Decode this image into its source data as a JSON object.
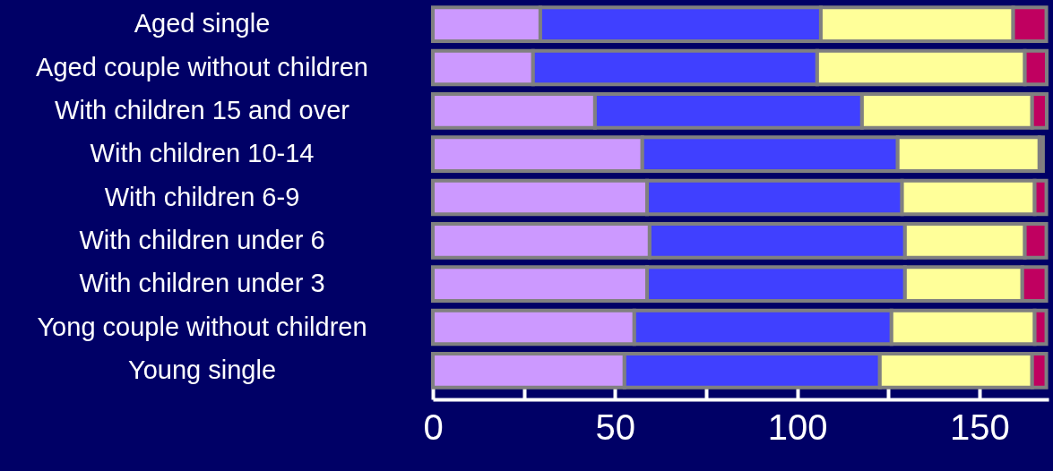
{
  "chart_data": {
    "type": "bar",
    "orientation": "horizontal",
    "stacked": true,
    "categories": [
      "Aged single",
      "Aged couple without children",
      "With children 15 and over",
      "With children 10-14",
      "With children 6-9",
      "With children under 6",
      "With children under 3",
      "Yong couple without children",
      "Young single"
    ],
    "series": [
      {
        "color": "#cc99ff",
        "values": [
          29.5,
          27.5,
          44.5,
          57.5,
          58.8,
          59.5,
          58.8,
          55.3,
          52.6
        ]
      },
      {
        "color": "#4040ff",
        "values": [
          77,
          78,
          73.3,
          70.1,
          70,
          70.1,
          70.8,
          70.6,
          70.1
        ]
      },
      {
        "color": "#ffff99",
        "values": [
          52.8,
          57,
          46.7,
          38.9,
          36.4,
          32.9,
          32.2,
          39.3,
          41.8
        ]
      },
      {
        "color": "#c00060",
        "values": [
          9.1,
          6,
          4,
          1,
          3.2,
          5.9,
          6.6,
          3.2,
          3.9
        ]
      }
    ],
    "xlim": [
      0,
      169
    ],
    "xticks": [
      0,
      {
        "value": 25,
        "label": null
      },
      50,
      {
        "value": 75,
        "label": null
      },
      100,
      {
        "value": 125,
        "label": null
      },
      150
    ]
  }
}
